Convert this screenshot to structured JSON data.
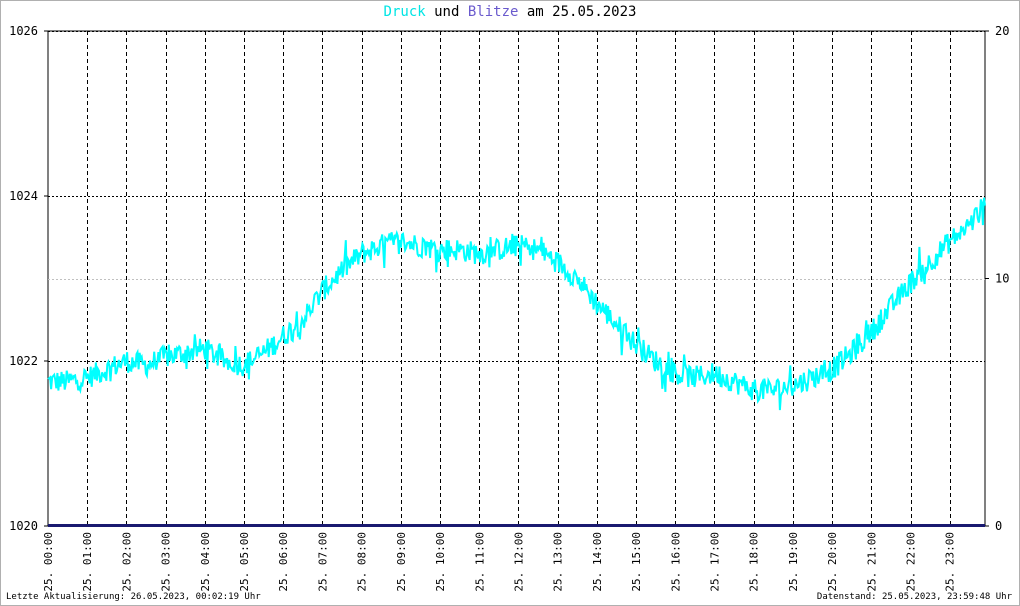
{
  "title": {
    "druck": "Druck",
    "und": "und",
    "blitze": "Blitze",
    "am": "am",
    "date": "25.05.2023"
  },
  "footer": {
    "left": "Letzte Aktualisierung: 26.05.2023, 00:02:19 Uhr",
    "right": "Datenstand: 25.05.2023, 23:59:48 Uhr"
  },
  "colors": {
    "pressure": "#00ffff",
    "lightning": "#191970",
    "grid": "#000000",
    "minor_grid": "#c0c0c0"
  },
  "chart_data": {
    "type": "line",
    "title": "Druck und Blitze am 25.05.2023",
    "x_tick_labels": [
      "25. 00:00",
      "25. 01:00",
      "25. 02:00",
      "25. 03:00",
      "25. 04:00",
      "25. 05:00",
      "25. 06:00",
      "25. 07:00",
      "25. 08:00",
      "25. 09:00",
      "25. 10:00",
      "25. 11:00",
      "25. 12:00",
      "25. 13:00",
      "25. 14:00",
      "25. 15:00",
      "25. 16:00",
      "25. 17:00",
      "25. 18:00",
      "25. 19:00",
      "25. 20:00",
      "25. 21:00",
      "25. 22:00",
      "25. 23:00"
    ],
    "y_left": {
      "ticks": [
        1020,
        1022,
        1024,
        1026
      ],
      "range": [
        1020,
        1026
      ]
    },
    "y_right": {
      "ticks": [
        0,
        10,
        20
      ],
      "range": [
        0,
        20
      ]
    },
    "grid": true,
    "series": [
      {
        "name": "Druck",
        "axis": "left",
        "x_hours": [
          0,
          0.5,
          1,
          1.5,
          2,
          2.5,
          3,
          3.5,
          4,
          4.5,
          5,
          5.5,
          6,
          6.5,
          7,
          7.5,
          8,
          8.5,
          9,
          9.5,
          10,
          10.5,
          11,
          11.5,
          12,
          12.5,
          13,
          13.5,
          14,
          14.5,
          15,
          15.5,
          16,
          16.5,
          17,
          17.5,
          18,
          18.5,
          19,
          19.5,
          20,
          20.5,
          21,
          21.5,
          22,
          22.5,
          23,
          23.5,
          24
        ],
        "values": [
          1021.75,
          1021.75,
          1021.8,
          1021.9,
          1022.0,
          1021.95,
          1022.05,
          1022.1,
          1022.15,
          1022.0,
          1021.95,
          1022.1,
          1022.3,
          1022.5,
          1022.85,
          1023.1,
          1023.3,
          1023.4,
          1023.45,
          1023.4,
          1023.35,
          1023.35,
          1023.3,
          1023.35,
          1023.4,
          1023.35,
          1023.2,
          1023.0,
          1022.7,
          1022.45,
          1022.2,
          1022.0,
          1021.85,
          1021.8,
          1021.85,
          1021.75,
          1021.65,
          1021.65,
          1021.7,
          1021.8,
          1021.9,
          1022.1,
          1022.35,
          1022.65,
          1022.95,
          1023.2,
          1023.45,
          1023.65,
          1023.95
        ]
      },
      {
        "name": "Blitze",
        "axis": "right",
        "x_hours": [
          0,
          24
        ],
        "values": [
          0,
          0
        ]
      }
    ]
  }
}
